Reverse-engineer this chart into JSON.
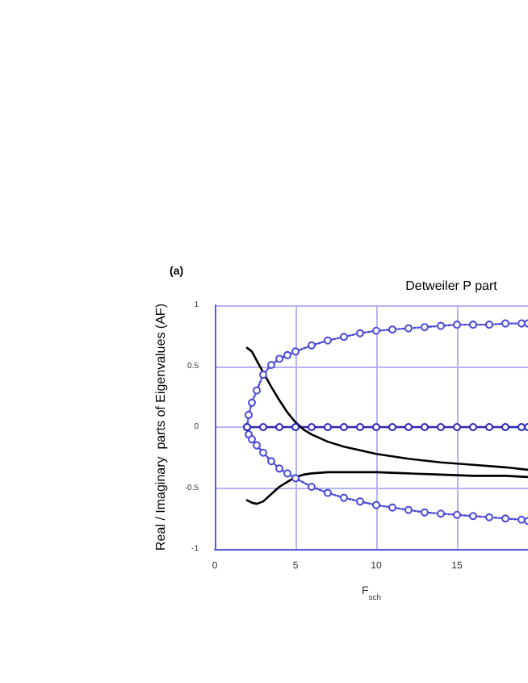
{
  "chart_data": {
    "type": "line",
    "title": "Detweiler P part",
    "annotations": [
      "(a)"
    ],
    "xlabel": "F$_{sch}$",
    "ylabel": "Real / Imaginary  parts of Eigenvalues (AF)",
    "xlim": [
      0,
      19.4
    ],
    "xticks": [
      0,
      5,
      10,
      15
    ],
    "ylim": [
      -1,
      1
    ],
    "yticks": [
      -1,
      -0.5,
      0,
      0.5,
      1
    ],
    "grid": true,
    "series": [
      {
        "color": "#4a4ad8",
        "marker": "circle",
        "line_style": "dotted",
        "x": [
          19.4,
          19,
          18,
          17,
          16,
          15,
          14,
          13,
          12,
          11,
          10,
          9,
          8,
          7,
          6,
          5,
          4.5,
          4,
          3.5,
          3,
          2.6,
          2.3,
          2.1,
          2,
          2.1,
          2.3,
          2.6,
          3,
          3.5,
          4,
          4.5,
          5,
          6,
          7,
          8,
          9,
          10,
          11,
          12,
          13,
          14,
          15,
          16,
          17,
          18,
          19,
          19.4
        ],
        "values": [
          0.85,
          0.85,
          0.85,
          0.84,
          0.84,
          0.84,
          0.83,
          0.82,
          0.81,
          0.8,
          0.79,
          0.77,
          0.74,
          0.71,
          0.67,
          0.62,
          0.59,
          0.56,
          0.51,
          0.43,
          0.3,
          0.2,
          0.1,
          0,
          -0.06,
          -0.1,
          -0.15,
          -0.21,
          -0.28,
          -0.34,
          -0.38,
          -0.42,
          -0.49,
          -0.54,
          -0.58,
          -0.61,
          -0.64,
          -0.66,
          -0.68,
          -0.7,
          -0.71,
          -0.72,
          -0.73,
          -0.74,
          -0.75,
          -0.76,
          -0.77
        ]
      },
      {
        "color": "#2a2ab8",
        "marker": "circle",
        "line_style": "solid",
        "x": [
          2,
          3,
          4,
          5,
          6,
          7,
          8,
          9,
          10,
          11,
          12,
          13,
          14,
          15,
          16,
          17,
          18,
          19,
          19.4
        ],
        "values": [
          0,
          0,
          0,
          0,
          0,
          0,
          0,
          0,
          0,
          0,
          0,
          0,
          0,
          0,
          0,
          0,
          0,
          0,
          0
        ]
      },
      {
        "color": "#000000",
        "marker": "none",
        "line_style": "solid",
        "x": [
          2,
          2.3,
          2.7,
          3,
          3.5,
          4,
          4.5,
          5,
          5.5,
          6,
          7,
          8,
          9,
          10,
          12,
          14,
          16,
          18,
          19.4
        ],
        "values": [
          0.65,
          0.62,
          0.52,
          0.45,
          0.33,
          0.22,
          0.12,
          0.04,
          -0.02,
          -0.06,
          -0.12,
          -0.16,
          -0.19,
          -0.22,
          -0.26,
          -0.29,
          -0.31,
          -0.33,
          -0.35
        ]
      },
      {
        "color": "#000000",
        "marker": "none",
        "line_style": "solid",
        "x": [
          2,
          2.3,
          2.6,
          3,
          3.5,
          4,
          4.5,
          5,
          5.5,
          6,
          7,
          8,
          10,
          12,
          14,
          16,
          18,
          19.4
        ],
        "values": [
          -0.6,
          -0.62,
          -0.63,
          -0.61,
          -0.55,
          -0.49,
          -0.45,
          -0.41,
          -0.39,
          -0.38,
          -0.37,
          -0.37,
          -0.37,
          -0.38,
          -0.39,
          -0.4,
          -0.4,
          -0.41
        ]
      }
    ]
  }
}
